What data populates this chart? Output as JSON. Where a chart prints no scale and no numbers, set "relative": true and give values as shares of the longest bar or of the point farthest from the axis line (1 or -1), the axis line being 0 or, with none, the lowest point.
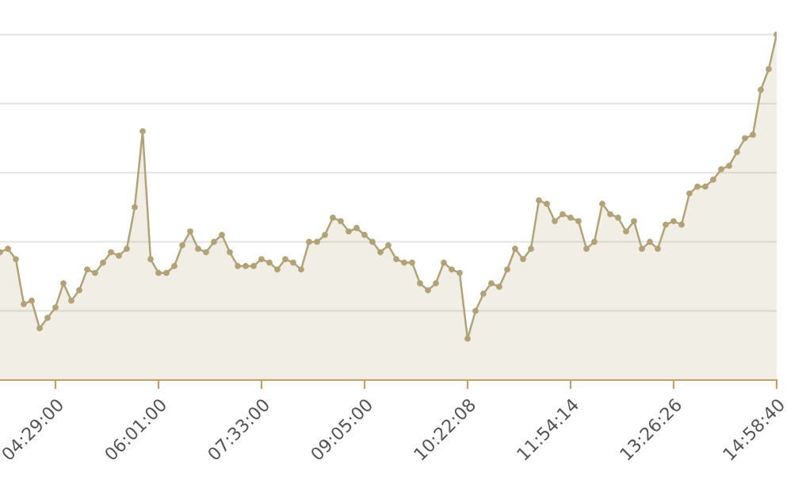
{
  "chart_data": {
    "type": "area",
    "relative": true,
    "grid": "y",
    "marker": "circle",
    "line_style": "solid",
    "categories": [
      null,
      null,
      null,
      null,
      null,
      null,
      null,
      "04:29:00",
      null,
      null,
      null,
      null,
      null,
      null,
      null,
      null,
      null,
      null,
      null,
      null,
      "06:01:00",
      null,
      null,
      null,
      null,
      null,
      null,
      null,
      null,
      null,
      null,
      null,
      null,
      "07:33:00",
      null,
      null,
      null,
      null,
      null,
      null,
      null,
      null,
      null,
      null,
      null,
      null,
      "09:05:00",
      null,
      null,
      null,
      null,
      null,
      null,
      null,
      null,
      null,
      null,
      null,
      null,
      "10:22:08",
      null,
      null,
      null,
      null,
      null,
      null,
      null,
      null,
      null,
      null,
      null,
      null,
      "11:54:14",
      null,
      null,
      null,
      null,
      null,
      null,
      null,
      null,
      null,
      null,
      null,
      null,
      "13:26:26",
      null,
      null,
      null,
      null,
      null,
      null,
      null,
      null,
      null,
      null,
      null,
      null,
      "14:58:40"
    ],
    "series": [
      {
        "color": "#b3a276",
        "values": [
          0.37,
          0.38,
          0.35,
          0.22,
          0.23,
          0.15,
          0.18,
          0.21,
          0.28,
          0.23,
          0.26,
          0.32,
          0.31,
          0.34,
          0.37,
          0.36,
          0.38,
          0.5,
          0.72,
          0.35,
          0.31,
          0.31,
          0.33,
          0.39,
          0.43,
          0.38,
          0.37,
          0.4,
          0.42,
          0.37,
          0.33,
          0.33,
          0.33,
          0.35,
          0.34,
          0.32,
          0.35,
          0.34,
          0.32,
          0.4,
          0.4,
          0.42,
          0.47,
          0.46,
          0.43,
          0.44,
          0.42,
          0.4,
          0.37,
          0.39,
          0.35,
          0.34,
          0.34,
          0.28,
          0.26,
          0.28,
          0.34,
          0.32,
          0.31,
          0.12,
          0.2,
          0.25,
          0.28,
          0.27,
          0.32,
          0.38,
          0.35,
          0.38,
          0.52,
          0.51,
          0.46,
          0.48,
          0.47,
          0.46,
          0.38,
          0.4,
          0.51,
          0.48,
          0.47,
          0.43,
          0.46,
          0.38,
          0.4,
          0.38,
          0.45,
          0.46,
          0.45,
          0.54,
          0.56,
          0.56,
          0.58,
          0.61,
          0.62,
          0.66,
          0.7,
          0.71,
          0.84,
          0.9,
          1
        ]
      }
    ]
  }
}
